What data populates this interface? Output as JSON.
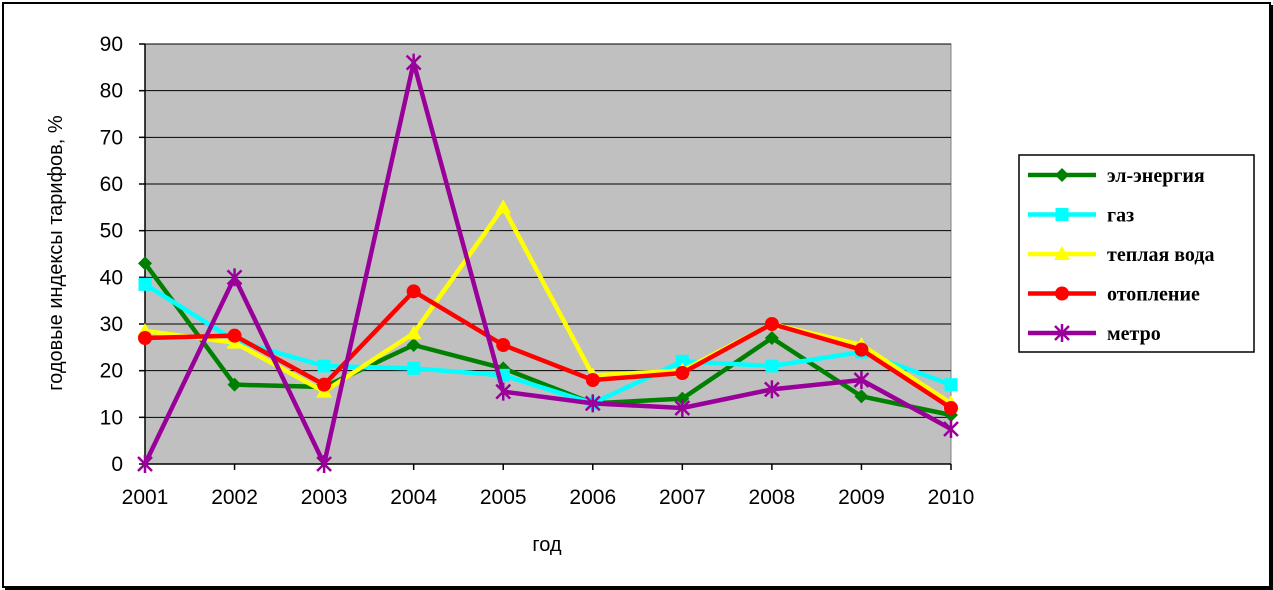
{
  "chart_data": {
    "type": "line",
    "xlabel": "год",
    "ylabel": "годовые индексы тарифов, %",
    "ylim": [
      0,
      90
    ],
    "yticks": [
      0,
      10,
      20,
      30,
      40,
      50,
      60,
      70,
      80,
      90
    ],
    "categories": [
      "2001",
      "2002",
      "2003",
      "2004",
      "2005",
      "2006",
      "2007",
      "2008",
      "2009",
      "2010"
    ],
    "grid": "horizontal",
    "plot_background": "#c0c0c0",
    "legend_position": "right",
    "series": [
      {
        "name": "эл-энергия",
        "color": "#008000",
        "marker": "diamond",
        "values": [
          43,
          17,
          16.5,
          25.5,
          20.5,
          13,
          14,
          27,
          14.5,
          10.5
        ]
      },
      {
        "name": "газ",
        "color": "#00ffff",
        "marker": "square",
        "values": [
          38.5,
          26.5,
          21,
          20.5,
          19,
          13,
          22,
          21,
          24,
          17
        ]
      },
      {
        "name": "теплая вода",
        "color": "#ffff00",
        "marker": "triangle",
        "values": [
          28.5,
          26,
          15.5,
          28,
          55,
          19,
          20,
          30,
          25.5,
          13
        ]
      },
      {
        "name": "отопление",
        "color": "#ff0000",
        "marker": "circle",
        "values": [
          27,
          27.5,
          17,
          37,
          25.5,
          18,
          19.5,
          30,
          24.5,
          12
        ]
      },
      {
        "name": "метро",
        "color": "#990099",
        "marker": "star",
        "values": [
          0,
          40,
          0,
          86,
          15.5,
          13,
          12,
          16,
          18,
          7.5
        ]
      }
    ]
  }
}
